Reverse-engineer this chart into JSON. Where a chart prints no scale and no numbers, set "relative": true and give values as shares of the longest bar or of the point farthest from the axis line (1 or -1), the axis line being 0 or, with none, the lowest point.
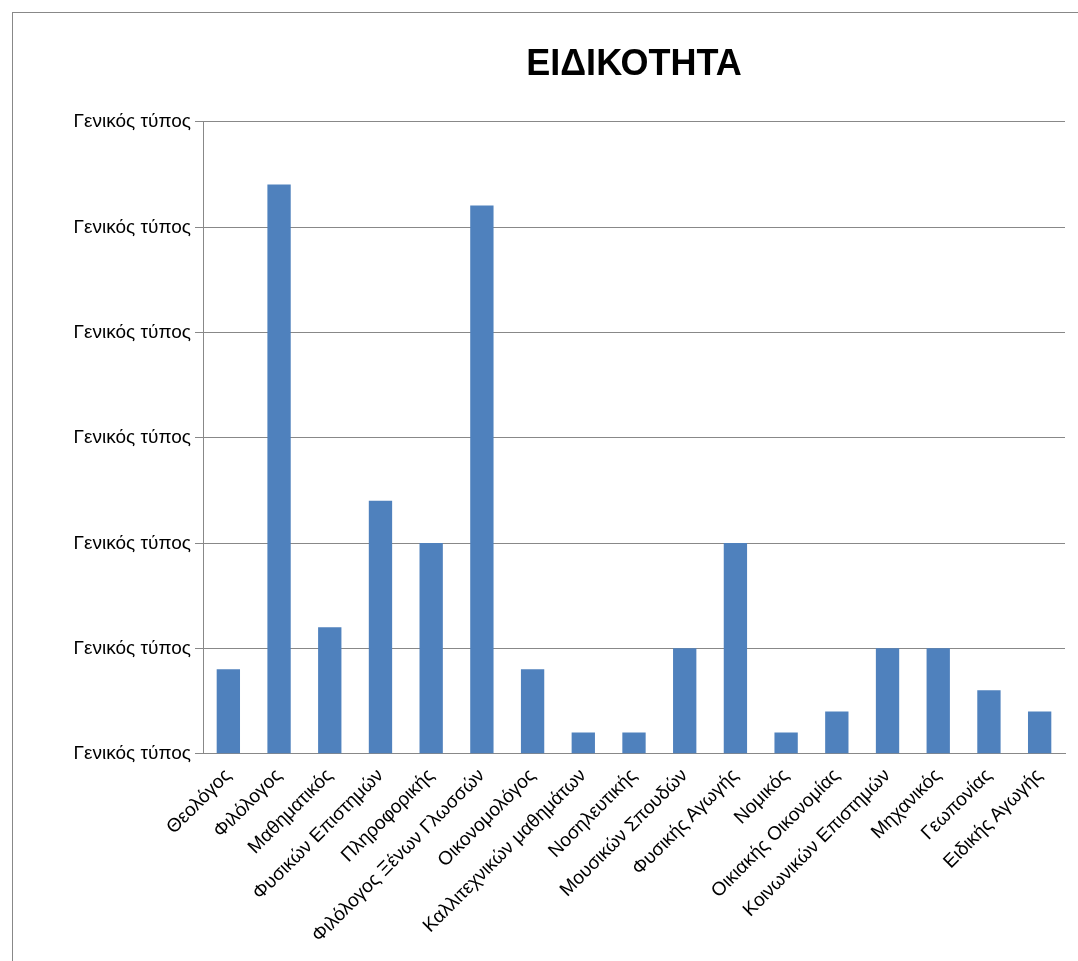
{
  "chart_data": {
    "type": "bar",
    "title": "ΕΙΔΙΚΟΤΗΤΑ",
    "categories": [
      "Θεολόγος",
      "Φιλόλογος",
      "Μαθηματικός",
      "Φυσικών Επιστημών",
      "Πληροφορικής",
      "Φιλόλογος Ξένων Γλωσσών",
      "Οικονομολόγος",
      "Καλλιτεχνικών μαθημάτων",
      "Νοσηλευτικής",
      "Μουσικών Σπουδών",
      "Φυσικής Αγωγής",
      "Νομικός",
      "Οικιακής Οικονομίας",
      "Κοινωνικών Επιστημών",
      "Μηχανικός",
      "Γεωπονίας",
      "Ειδικής Αγωγής"
    ],
    "values": [
      0.148,
      1,
      0.222,
      0.444,
      0.37,
      0.963,
      0.148,
      0.037,
      0.037,
      0.185,
      0.37,
      0.037,
      0.074,
      0.185,
      0.185,
      0.111,
      0.074
    ],
    "relative": true,
    "color": "#4f81bd",
    "annotations": [
      "Γενικός τύπος",
      "Γενικός τύπος",
      "Γενικός τύπος",
      "Γενικός τύπος",
      "Γενικός τύπος",
      "Γενικός τύπος",
      "Γενικός τύπος"
    ],
    "grid": "y"
  }
}
